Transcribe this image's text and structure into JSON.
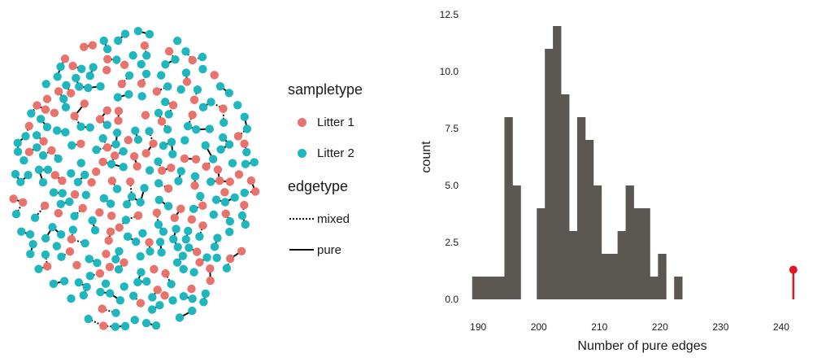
{
  "network_legend": {
    "sampletype_title": "sampletype",
    "sampletypes": [
      {
        "label": "Litter 1",
        "color": "#E8736C"
      },
      {
        "label": "Litter 2",
        "color": "#1FB7BD"
      }
    ],
    "edgetype_title": "edgetype",
    "edgetypes": [
      {
        "label": "mixed",
        "style": "dotted"
      },
      {
        "label": "pure",
        "style": "solid"
      }
    ]
  },
  "chart_data": {
    "type": "bar",
    "subtype": "histogram",
    "xlabel": "Number of pure edges",
    "ylabel": "count",
    "bar_color": "#5B5753",
    "highlight_color": "#E0151E",
    "bin_width": 1.33,
    "bins": [
      {
        "start": 189.0,
        "count": 1
      },
      {
        "start": 190.33,
        "count": 1
      },
      {
        "start": 191.67,
        "count": 1
      },
      {
        "start": 193.0,
        "count": 1
      },
      {
        "start": 194.33,
        "count": 8
      },
      {
        "start": 195.67,
        "count": 5
      },
      {
        "start": 197.0,
        "count": 0
      },
      {
        "start": 198.33,
        "count": 0
      },
      {
        "start": 199.67,
        "count": 4
      },
      {
        "start": 201.0,
        "count": 11
      },
      {
        "start": 202.33,
        "count": 12
      },
      {
        "start": 203.67,
        "count": 9
      },
      {
        "start": 205.0,
        "count": 3
      },
      {
        "start": 206.33,
        "count": 8
      },
      {
        "start": 207.67,
        "count": 7
      },
      {
        "start": 209.0,
        "count": 5
      },
      {
        "start": 210.33,
        "count": 2
      },
      {
        "start": 211.67,
        "count": 2
      },
      {
        "start": 213.0,
        "count": 3
      },
      {
        "start": 214.33,
        "count": 5
      },
      {
        "start": 215.67,
        "count": 4
      },
      {
        "start": 217.0,
        "count": 4
      },
      {
        "start": 218.33,
        "count": 1
      },
      {
        "start": 219.67,
        "count": 2
      },
      {
        "start": 221.0,
        "count": 0
      },
      {
        "start": 222.33,
        "count": 1
      },
      {
        "start": 223.67,
        "count": 0
      },
      {
        "start": 225.0,
        "count": 0
      }
    ],
    "observed": {
      "x": 242.0,
      "y": 1.3
    },
    "xlim": [
      188.5,
      243.5
    ],
    "ylim": [
      0,
      12.5
    ],
    "xticks": [
      190,
      200,
      210,
      220,
      230,
      240
    ],
    "xtick_labels": [
      "190",
      "200",
      "210",
      "220",
      "230",
      "240"
    ],
    "yticks": [
      0,
      2.5,
      5,
      7.5,
      10,
      12.5
    ],
    "ytick_labels": [
      "0.0",
      "2.5",
      "5.0",
      "7.5",
      "10.0",
      "12.5"
    ],
    "grid": false
  }
}
